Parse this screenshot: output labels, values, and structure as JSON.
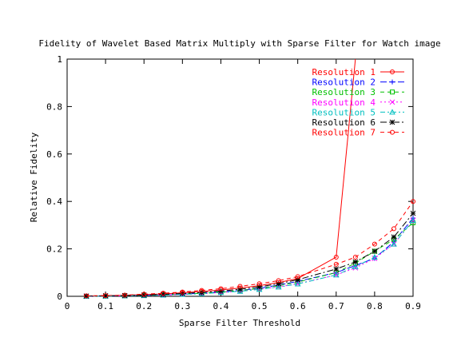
{
  "chart_data": {
    "type": "line",
    "title": "Fidelity of Wavelet Based Matrix Multiply with Sparse Filter for Watch image",
    "xlabel": "Sparse Filter Threshold",
    "ylabel": "Relative Fidelity",
    "xlim": [
      0,
      0.9
    ],
    "ylim": [
      0,
      1
    ],
    "x_ticks": [
      "0",
      "0.1",
      "0.2",
      "0.3",
      "0.4",
      "0.5",
      "0.6",
      "0.7",
      "0.8",
      "0.9"
    ],
    "x_tick_values": [
      0,
      0.1,
      0.2,
      0.3,
      0.4,
      0.5,
      0.6,
      0.7,
      0.8,
      0.9
    ],
    "y_ticks": [
      "0",
      "0.2",
      "0.4",
      "0.6",
      "0.8",
      "1"
    ],
    "y_tick_values": [
      0,
      0.2,
      0.4,
      0.6,
      0.8,
      1
    ],
    "grid": false,
    "legend_position": "top-right",
    "x": [
      0.05,
      0.1,
      0.15,
      0.2,
      0.25,
      0.3,
      0.35,
      0.4,
      0.45,
      0.5,
      0.55,
      0.6,
      0.7,
      0.75,
      0.8,
      0.85,
      0.9
    ],
    "series": [
      {
        "name": "Resolution 1",
        "color": "#ff0000",
        "dash": "solid",
        "marker": "circle",
        "values": [
          0.001,
          0.002,
          0.004,
          0.007,
          0.01,
          0.015,
          0.02,
          0.027,
          0.035,
          0.045,
          0.058,
          0.075,
          0.165,
          1.0,
          null,
          null,
          null
        ]
      },
      {
        "name": "Resolution 2",
        "color": "#0000ff",
        "dash": "longdash",
        "marker": "plus",
        "values": [
          0.0,
          0.001,
          0.002,
          0.004,
          0.006,
          0.009,
          0.013,
          0.018,
          0.025,
          0.034,
          0.047,
          0.063,
          0.1,
          0.13,
          0.16,
          0.23,
          0.33
        ]
      },
      {
        "name": "Resolution 3",
        "color": "#00c000",
        "dash": "dash",
        "marker": "square",
        "values": [
          0.0,
          0.001,
          0.002,
          0.004,
          0.006,
          0.009,
          0.013,
          0.018,
          0.024,
          0.033,
          0.045,
          0.06,
          0.1,
          0.14,
          0.19,
          0.24,
          0.31
        ]
      },
      {
        "name": "Resolution 4",
        "color": "#ff00ff",
        "dash": "dot",
        "marker": "cross",
        "values": [
          0.0,
          0.001,
          0.002,
          0.003,
          0.005,
          0.008,
          0.011,
          0.016,
          0.022,
          0.03,
          0.04,
          0.053,
          0.09,
          0.12,
          0.16,
          0.22,
          0.32
        ]
      },
      {
        "name": "Resolution 5",
        "color": "#00c0c0",
        "dash": "dashdot",
        "marker": "triangle",
        "values": [
          0.0,
          0.001,
          0.002,
          0.003,
          0.005,
          0.008,
          0.011,
          0.016,
          0.021,
          0.029,
          0.039,
          0.052,
          0.09,
          0.125,
          0.165,
          0.22,
          0.32
        ]
      },
      {
        "name": "Resolution 6",
        "color": "#000000",
        "dash": "dashdot2",
        "marker": "star",
        "values": [
          0.001,
          0.002,
          0.003,
          0.005,
          0.008,
          0.012,
          0.016,
          0.022,
          0.03,
          0.04,
          0.053,
          0.07,
          0.115,
          0.145,
          0.19,
          0.25,
          0.35
        ]
      },
      {
        "name": "Resolution 7",
        "color": "#ff0000",
        "dash": "dash",
        "marker": "circle",
        "values": [
          0.002,
          0.003,
          0.005,
          0.009,
          0.013,
          0.018,
          0.025,
          0.032,
          0.042,
          0.053,
          0.066,
          0.083,
          0.135,
          0.165,
          0.22,
          0.285,
          0.4
        ]
      }
    ]
  }
}
